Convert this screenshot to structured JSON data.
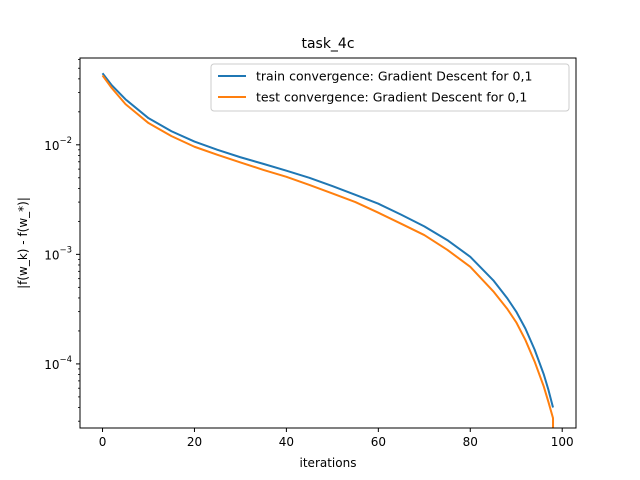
{
  "chart_data": {
    "type": "line",
    "title": "task_4c",
    "xlabel": "iterations",
    "ylabel": "|f(w_k) - f(w_*)|",
    "yscale": "log",
    "xlim": [
      -4.9,
      103
    ],
    "ylim": [
      2.6e-05,
      0.062
    ],
    "xticks": [
      0,
      20,
      40,
      60,
      80,
      100
    ],
    "xtick_labels": [
      "0",
      "20",
      "40",
      "60",
      "80",
      "100"
    ],
    "yticks": [
      0.0001,
      0.001,
      0.01
    ],
    "ytick_labels": [
      {
        "base": "10",
        "exp": "−4"
      },
      {
        "base": "10",
        "exp": "−3"
      },
      {
        "base": "10",
        "exp": "−2"
      }
    ],
    "grid": false,
    "legend": "top-right",
    "series": [
      {
        "name": "train convergence: Gradient Descent for 0,1",
        "color": "#1f77b4",
        "points": [
          [
            0,
            0.045
          ],
          [
            2,
            0.035
          ],
          [
            5,
            0.026
          ],
          [
            10,
            0.0175
          ],
          [
            15,
            0.0133
          ],
          [
            20,
            0.0107
          ],
          [
            25,
            0.009
          ],
          [
            30,
            0.0077
          ],
          [
            35,
            0.0067
          ],
          [
            40,
            0.0058
          ],
          [
            45,
            0.005
          ],
          [
            50,
            0.0042
          ],
          [
            55,
            0.0035
          ],
          [
            60,
            0.0029
          ],
          [
            65,
            0.0023
          ],
          [
            70,
            0.0018
          ],
          [
            75,
            0.00135
          ],
          [
            80,
            0.00095
          ],
          [
            85,
            0.00058
          ],
          [
            88,
            0.0004
          ],
          [
            90,
            0.0003
          ],
          [
            92,
            0.00021
          ],
          [
            94,
            0.000135
          ],
          [
            96,
            8e-05
          ],
          [
            97,
            5.8e-05
          ],
          [
            98,
            4e-05
          ]
        ]
      },
      {
        "name": "test convergence: Gradient Descent for 0,1",
        "color": "#ff7f0e",
        "points": [
          [
            0,
            0.043
          ],
          [
            2,
            0.033
          ],
          [
            5,
            0.0235
          ],
          [
            10,
            0.0158
          ],
          [
            15,
            0.012
          ],
          [
            20,
            0.0096
          ],
          [
            25,
            0.0081
          ],
          [
            30,
            0.0069
          ],
          [
            35,
            0.0059
          ],
          [
            40,
            0.0051
          ],
          [
            45,
            0.0043
          ],
          [
            50,
            0.0036
          ],
          [
            55,
            0.003
          ],
          [
            60,
            0.0024
          ],
          [
            65,
            0.0019
          ],
          [
            70,
            0.0015
          ],
          [
            75,
            0.0011
          ],
          [
            80,
            0.00077
          ],
          [
            85,
            0.00046
          ],
          [
            88,
            0.00032
          ],
          [
            90,
            0.00024
          ],
          [
            92,
            0.000165
          ],
          [
            94,
            0.000105
          ],
          [
            96,
            6.2e-05
          ],
          [
            97,
            4.5e-05
          ],
          [
            98,
            3.2e-05
          ],
          [
            98,
            2.6e-05
          ]
        ]
      }
    ]
  }
}
